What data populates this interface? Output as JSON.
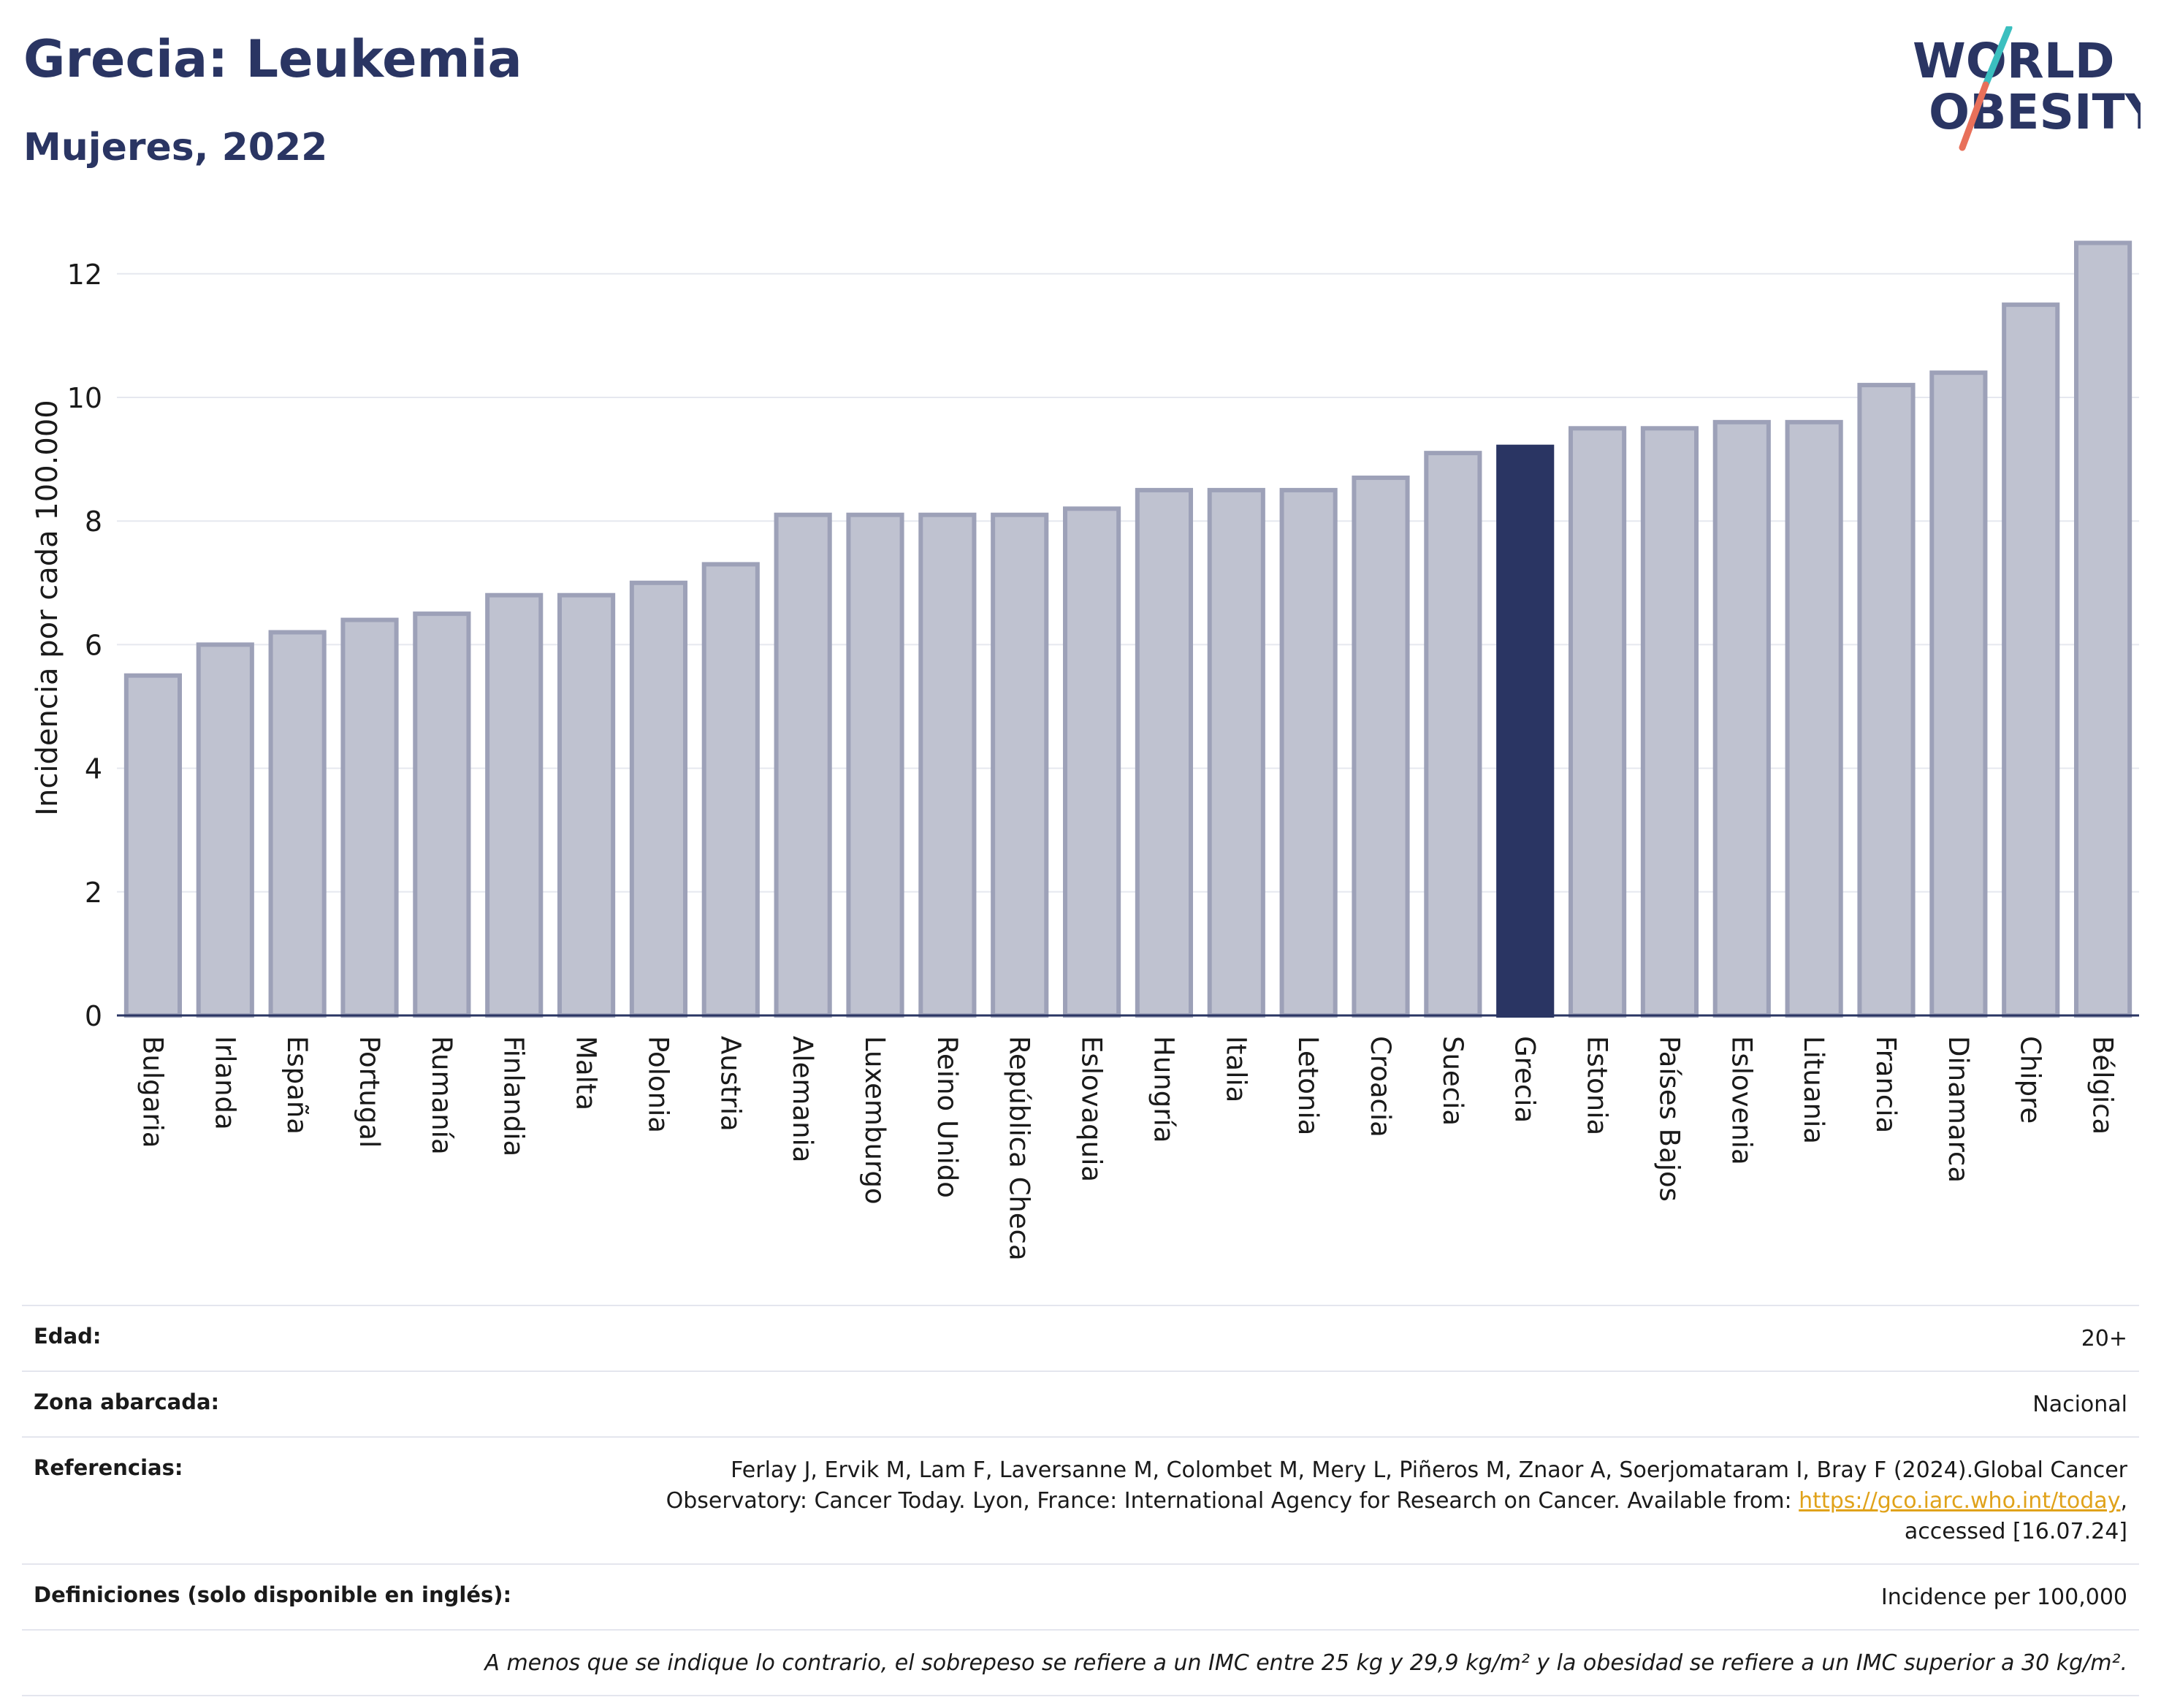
{
  "header": {
    "title": "Grecia: Leukemia",
    "subtitle": "Mujeres, 2022"
  },
  "logo": {
    "line1": "WORLD",
    "line2": "OBESITY",
    "accent_teal": "#3bbfbf",
    "accent_coral": "#e8705a",
    "text_color": "#2a3563"
  },
  "colors": {
    "bar_default": "#bfc2d0",
    "bar_stroke": "#9da1b8",
    "bar_highlight": "#2a3563",
    "grid": "#e6e8ef",
    "axis": "#2a3563"
  },
  "chart_data": {
    "type": "bar",
    "title": "Grecia: Leukemia",
    "subtitle": "Mujeres, 2022",
    "ylabel": "Incidencia por cada 100.000",
    "xlabel": "",
    "ylim": [
      0,
      12.9
    ],
    "yticks": [
      0,
      2,
      4,
      6,
      8,
      10,
      12
    ],
    "grid": true,
    "highlight": "Grecia",
    "categories": [
      "Bulgaria",
      "Irlanda",
      "España",
      "Portugal",
      "Rumanía",
      "Finlandia",
      "Malta",
      "Polonia",
      "Austria",
      "Alemania",
      "Luxemburgo",
      "Reino Unido",
      "República Checa",
      "Eslovaquia",
      "Hungría",
      "Italia",
      "Letonia",
      "Croacia",
      "Suecia",
      "Grecia",
      "Estonia",
      "Países Bajos",
      "Eslovenia",
      "Lituania",
      "Francia",
      "Dinamarca",
      "Chipre",
      "Bélgica"
    ],
    "values": [
      5.5,
      6.0,
      6.2,
      6.4,
      6.5,
      6.8,
      6.8,
      7.0,
      7.3,
      8.1,
      8.1,
      8.1,
      8.1,
      8.2,
      8.5,
      8.5,
      8.5,
      8.7,
      9.1,
      9.2,
      9.5,
      9.5,
      9.6,
      9.6,
      10.2,
      10.4,
      11.5,
      12.5
    ]
  },
  "info": {
    "age": {
      "label": "Edad:",
      "value": "20+"
    },
    "area": {
      "label": "Zona abarcada:",
      "value": "Nacional"
    },
    "references": {
      "label": "Referencias:",
      "line1": "Ferlay J, Ervik M, Lam F, Laversanne M, Colombet M, Mery L, Piñeros M, Znaor A, Soerjomataram I, Bray F (2024).Global Cancer",
      "line2_before": "Observatory: Cancer Today. Lyon, France: International Agency for Research on Cancer. Available from: ",
      "link": "https://gco.iarc.who.int/today",
      "line2_after": ",",
      "line3": "accessed [16.07.24]"
    },
    "definitions": {
      "label": "Definiciones (solo disponible en inglés):",
      "value": "Incidence per 100,000"
    },
    "note": "A menos que se indique lo contrario, el sobrepeso se refiere a un IMC entre 25 kg y 29,9 kg/m² y la obesidad se refiere a un IMC superior a 30 kg/m²."
  }
}
